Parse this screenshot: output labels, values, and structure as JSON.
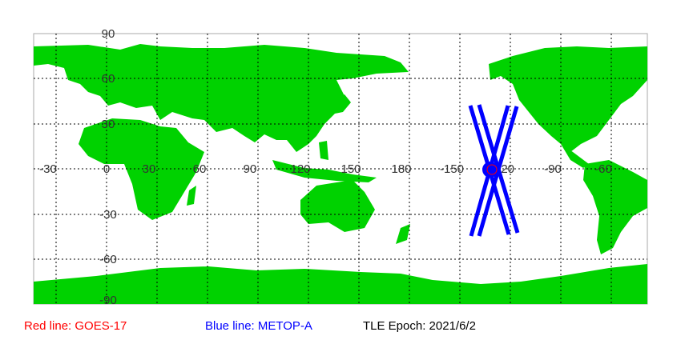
{
  "map": {
    "lon_labels": [
      "-30",
      "0",
      "30",
      "60",
      "90",
      "120",
      "150",
      "180",
      "-150",
      "-120",
      "-90",
      "-60"
    ],
    "lat_labels": [
      "90",
      "60",
      "30",
      "-30",
      "-60",
      "-90"
    ],
    "equator_label": "0",
    "colors": {
      "land": "#00d200",
      "ocean": "#ffffff",
      "track": "#0000ff",
      "goes_track": "#ff0000",
      "grid": "#000000"
    },
    "satellite_marker": {
      "name": "METOP-A",
      "icon": "filled-circle"
    }
  },
  "legend": {
    "red": "Red line: GOES-17",
    "blue": "Blue line: METOP-A",
    "epoch": "TLE Epoch: 2021/6/2",
    "red_color": "#ff0000",
    "blue_color": "#0000ff"
  }
}
